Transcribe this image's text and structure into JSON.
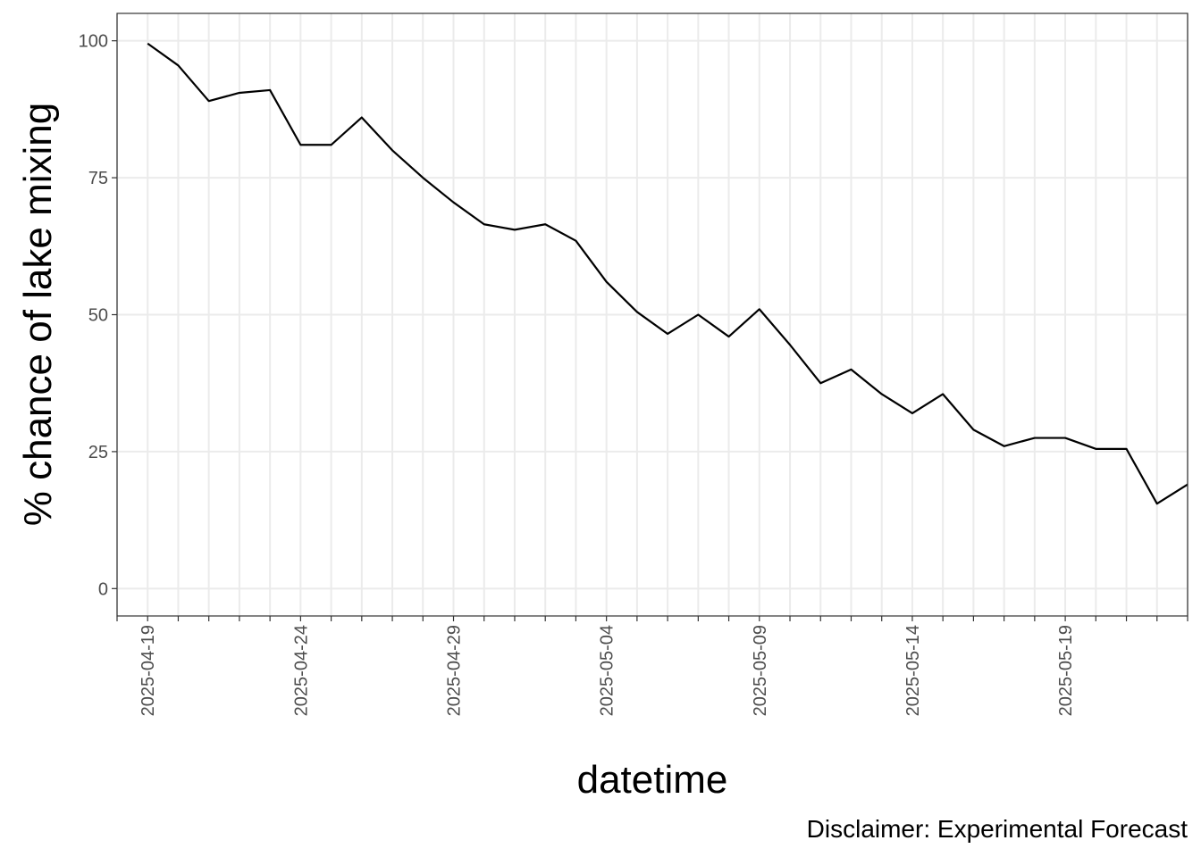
{
  "chart_data": {
    "type": "line",
    "xlabel": "datetime",
    "ylabel": "% chance of lake mixing",
    "caption": "Disclaimer: Experimental Forecast",
    "xlim": [
      "2025-04-18",
      "2025-05-23"
    ],
    "ylim": [
      -5,
      105
    ],
    "x_ticks": [
      "2025-04-19",
      "2025-04-24",
      "2025-04-29",
      "2025-05-04",
      "2025-05-09",
      "2025-05-14",
      "2025-05-19"
    ],
    "y_ticks": [
      0,
      25,
      50,
      75,
      100
    ],
    "grid": true,
    "line_color": "#000000",
    "series": [
      {
        "x": [
          "2025-04-19",
          "2025-04-20",
          "2025-04-21",
          "2025-04-22",
          "2025-04-23",
          "2025-04-24",
          "2025-04-25",
          "2025-04-26",
          "2025-04-27",
          "2025-04-28",
          "2025-04-29",
          "2025-04-30",
          "2025-05-01",
          "2025-05-02",
          "2025-05-03",
          "2025-05-04",
          "2025-05-05",
          "2025-05-06",
          "2025-05-07",
          "2025-05-08",
          "2025-05-09",
          "2025-05-10",
          "2025-05-11",
          "2025-05-12",
          "2025-05-13",
          "2025-05-14",
          "2025-05-15",
          "2025-05-16",
          "2025-05-17",
          "2025-05-18",
          "2025-05-19",
          "2025-05-20",
          "2025-05-21",
          "2025-05-22",
          "2025-05-23"
        ],
        "values": [
          99.5,
          95.5,
          89,
          90.5,
          91,
          81,
          81,
          86,
          80,
          75,
          70.5,
          66.5,
          65.5,
          66.5,
          63.5,
          56,
          50.5,
          46.5,
          50,
          46,
          51,
          44.5,
          37.5,
          40,
          35.5,
          32,
          35.5,
          29,
          26,
          27.5,
          27.5,
          25.5,
          25.5,
          15.5,
          19
        ]
      }
    ]
  }
}
